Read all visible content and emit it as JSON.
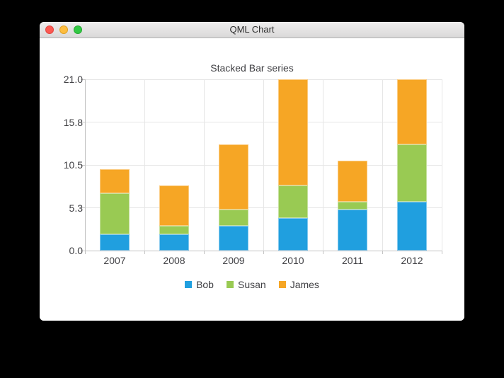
{
  "window": {
    "title": "QML Chart",
    "traffic_lights": [
      {
        "name": "close",
        "color": "#fc5952"
      },
      {
        "name": "minimize",
        "color": "#fdbd3f"
      },
      {
        "name": "zoom",
        "color": "#32c944"
      }
    ]
  },
  "chart_data": {
    "type": "bar",
    "stacked": true,
    "title": "Stacked Bar series",
    "categories": [
      "2007",
      "2008",
      "2009",
      "2010",
      "2011",
      "2012"
    ],
    "series": [
      {
        "name": "Bob",
        "color": "#209fdf",
        "border_color": "#84c9ee",
        "values": [
          2,
          2,
          3,
          4,
          5,
          6
        ]
      },
      {
        "name": "Susan",
        "color": "#99ca53",
        "border_color": "#c6e19f",
        "values": [
          5,
          1,
          2,
          4,
          1,
          7
        ]
      },
      {
        "name": "James",
        "color": "#f6a625",
        "border_color": "#fbcb80",
        "values": [
          3,
          5,
          8,
          13,
          5,
          8
        ]
      }
    ],
    "ylim": [
      0,
      21
    ],
    "y_tick_labels": [
      "21.0",
      "15.8",
      "10.5",
      "5.3",
      "0.0"
    ],
    "xlabel": "",
    "ylabel": "",
    "grid": true,
    "legend_position": "bottom",
    "legend_labels": [
      "Bob",
      "Susan",
      "James"
    ],
    "text_color": "#404044",
    "grid_color": "#e6e6e6",
    "axis_color": "#c3c3c3"
  }
}
